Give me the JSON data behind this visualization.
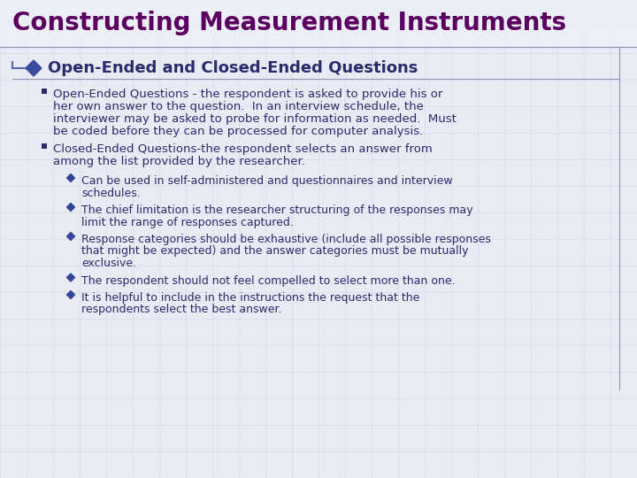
{
  "title": "Constructing Measurement Instruments",
  "title_color": "#5B0060",
  "slide_bg": "#E8EBF4",
  "grid_color": "#C0C4D8",
  "header_bar_color": "#B8C4D8",
  "heading": "Open-Ended and Closed-Ended Questions",
  "heading_color": "#2B2B6B",
  "heading_fontsize": 13,
  "title_fontsize": 20,
  "bullet_color": "#2B2B6B",
  "sub_bullet_color": "#334499",
  "text_color": "#2B2B6B",
  "text_fontsize": 9.5,
  "sub_text_fontsize": 9.0,
  "b1_lines": [
    "Open-Ended Questions - the respondent is asked to provide his or",
    "her own answer to the question.  In an interview schedule, the",
    "interviewer may be asked to probe for information as needed.  Must",
    "be coded before they can be processed for computer analysis."
  ],
  "b2_lines": [
    "Closed-Ended Questions-the respondent selects an answer from",
    "among the list provided by the researcher."
  ],
  "sub_bullets": [
    [
      "Can be used in self-administered and questionnaires and interview",
      "schedules."
    ],
    [
      "The chief limitation is the researcher structuring of the responses may",
      "limit the range of responses captured."
    ],
    [
      "Response categories should be exhaustive (include all possible responses",
      "that might be expected) and the answer categories must be mutually",
      "exclusive."
    ],
    [
      "The respondent should not feel compelled to select more than one."
    ],
    [
      "It is helpful to include in the instructions the request that the",
      "respondents select the best answer."
    ]
  ]
}
